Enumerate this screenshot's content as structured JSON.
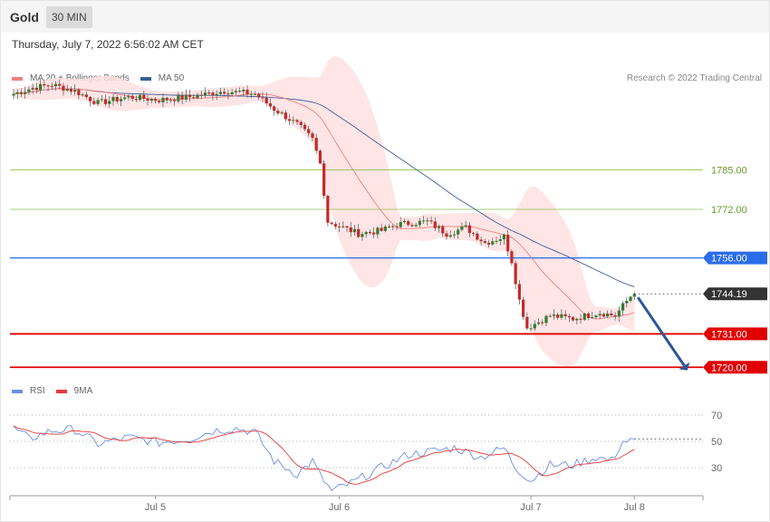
{
  "header": {
    "instrument": "Gold",
    "timeframe": "30 MIN",
    "datetime": "Thursday, July 7, 2022 6:56:02 AM CET",
    "copyright": "Research © 2022 Trading Central"
  },
  "colors": {
    "ma20": "#f08080",
    "ma50": "#3b5f9a",
    "band": "#ffe0e0",
    "bull": "#2e7d32",
    "bear": "#c62828",
    "rsi": "#6b8fe0",
    "rsi_ma": "#e53935",
    "support": "#e00000",
    "pivot": "#2b6de8",
    "resistance": "#8bc34a",
    "last": "#333333",
    "arrow": "#2f5597"
  },
  "chart_data": [
    {
      "type": "candlestick",
      "name": "price",
      "legend": [
        {
          "label": "MA 20 + Bollinger Bands",
          "color": "#f08080"
        },
        {
          "label": "MA 50",
          "color": "#3b5f9a"
        }
      ],
      "x_ticks": [
        {
          "label": "Jul 5",
          "index": 37
        },
        {
          "label": "Jul 6",
          "index": 85
        },
        {
          "label": "Jul 7",
          "index": 135
        },
        {
          "label": "Jul 8",
          "index": 162
        }
      ],
      "ylim": [
        1712,
        1830
      ],
      "levels": [
        {
          "value": 1785.0,
          "label": "1785.00",
          "kind": "resistance"
        },
        {
          "value": 1772.0,
          "label": "1772.00",
          "kind": "resistance"
        },
        {
          "value": 1756.0,
          "label": "1756.00",
          "kind": "pivot"
        },
        {
          "value": 1744.19,
          "label": "1744.19",
          "kind": "last"
        },
        {
          "value": 1731.0,
          "label": "1731.00",
          "kind": "support"
        },
        {
          "value": 1720.0,
          "label": "1720.00",
          "kind": "support"
        }
      ],
      "forecast_arrow": {
        "from_index": 162,
        "from_value": 1743.0,
        "to_index": 176,
        "to_value": 1720.5
      },
      "anchors": [
        {
          "i": 0,
          "p": 1810.0
        },
        {
          "i": 5,
          "p": 1812.0
        },
        {
          "i": 10,
          "p": 1813.0
        },
        {
          "i": 16,
          "p": 1811.0
        },
        {
          "i": 22,
          "p": 1807.0
        },
        {
          "i": 30,
          "p": 1809.0
        },
        {
          "i": 38,
          "p": 1808.0
        },
        {
          "i": 46,
          "p": 1809.0
        },
        {
          "i": 55,
          "p": 1811.0
        },
        {
          "i": 63,
          "p": 1810.0
        },
        {
          "i": 68,
          "p": 1805.0
        },
        {
          "i": 74,
          "p": 1800.0
        },
        {
          "i": 78,
          "p": 1795.0
        },
        {
          "i": 80,
          "p": 1787.0
        },
        {
          "i": 82,
          "p": 1768.0
        },
        {
          "i": 86,
          "p": 1766.0
        },
        {
          "i": 90,
          "p": 1764.0
        },
        {
          "i": 96,
          "p": 1765.0
        },
        {
          "i": 100,
          "p": 1767.0
        },
        {
          "i": 108,
          "p": 1768.0
        },
        {
          "i": 113,
          "p": 1764.0
        },
        {
          "i": 118,
          "p": 1766.0
        },
        {
          "i": 123,
          "p": 1761.0
        },
        {
          "i": 128,
          "p": 1763.0
        },
        {
          "i": 130,
          "p": 1755.0
        },
        {
          "i": 132,
          "p": 1742.0
        },
        {
          "i": 134,
          "p": 1733.0
        },
        {
          "i": 140,
          "p": 1737.0
        },
        {
          "i": 146,
          "p": 1736.0
        },
        {
          "i": 153,
          "p": 1738.0
        },
        {
          "i": 157,
          "p": 1737.0
        },
        {
          "i": 162,
          "p": 1745.0
        }
      ]
    },
    {
      "type": "line",
      "name": "rsi",
      "legend": [
        {
          "label": "RSI",
          "color": "#6b8fe0"
        },
        {
          "label": "9MA",
          "color": "#e53935"
        }
      ],
      "ylim": [
        10,
        80
      ],
      "y_ticks": [
        30,
        50,
        70
      ],
      "anchors": [
        {
          "i": 0,
          "v": 60
        },
        {
          "i": 4,
          "v": 52
        },
        {
          "i": 10,
          "v": 58
        },
        {
          "i": 16,
          "v": 59
        },
        {
          "i": 22,
          "v": 48
        },
        {
          "i": 30,
          "v": 53
        },
        {
          "i": 38,
          "v": 49
        },
        {
          "i": 46,
          "v": 52
        },
        {
          "i": 52,
          "v": 58
        },
        {
          "i": 58,
          "v": 60
        },
        {
          "i": 63,
          "v": 57
        },
        {
          "i": 68,
          "v": 35
        },
        {
          "i": 74,
          "v": 25
        },
        {
          "i": 78,
          "v": 35
        },
        {
          "i": 80,
          "v": 24
        },
        {
          "i": 83,
          "v": 12
        },
        {
          "i": 88,
          "v": 18
        },
        {
          "i": 96,
          "v": 30
        },
        {
          "i": 103,
          "v": 40
        },
        {
          "i": 108,
          "v": 42
        },
        {
          "i": 115,
          "v": 45
        },
        {
          "i": 122,
          "v": 38
        },
        {
          "i": 128,
          "v": 45
        },
        {
          "i": 131,
          "v": 30
        },
        {
          "i": 135,
          "v": 20
        },
        {
          "i": 140,
          "v": 32
        },
        {
          "i": 146,
          "v": 32
        },
        {
          "i": 152,
          "v": 38
        },
        {
          "i": 156,
          "v": 35
        },
        {
          "i": 159,
          "v": 50
        },
        {
          "i": 162,
          "v": 50
        }
      ]
    }
  ]
}
